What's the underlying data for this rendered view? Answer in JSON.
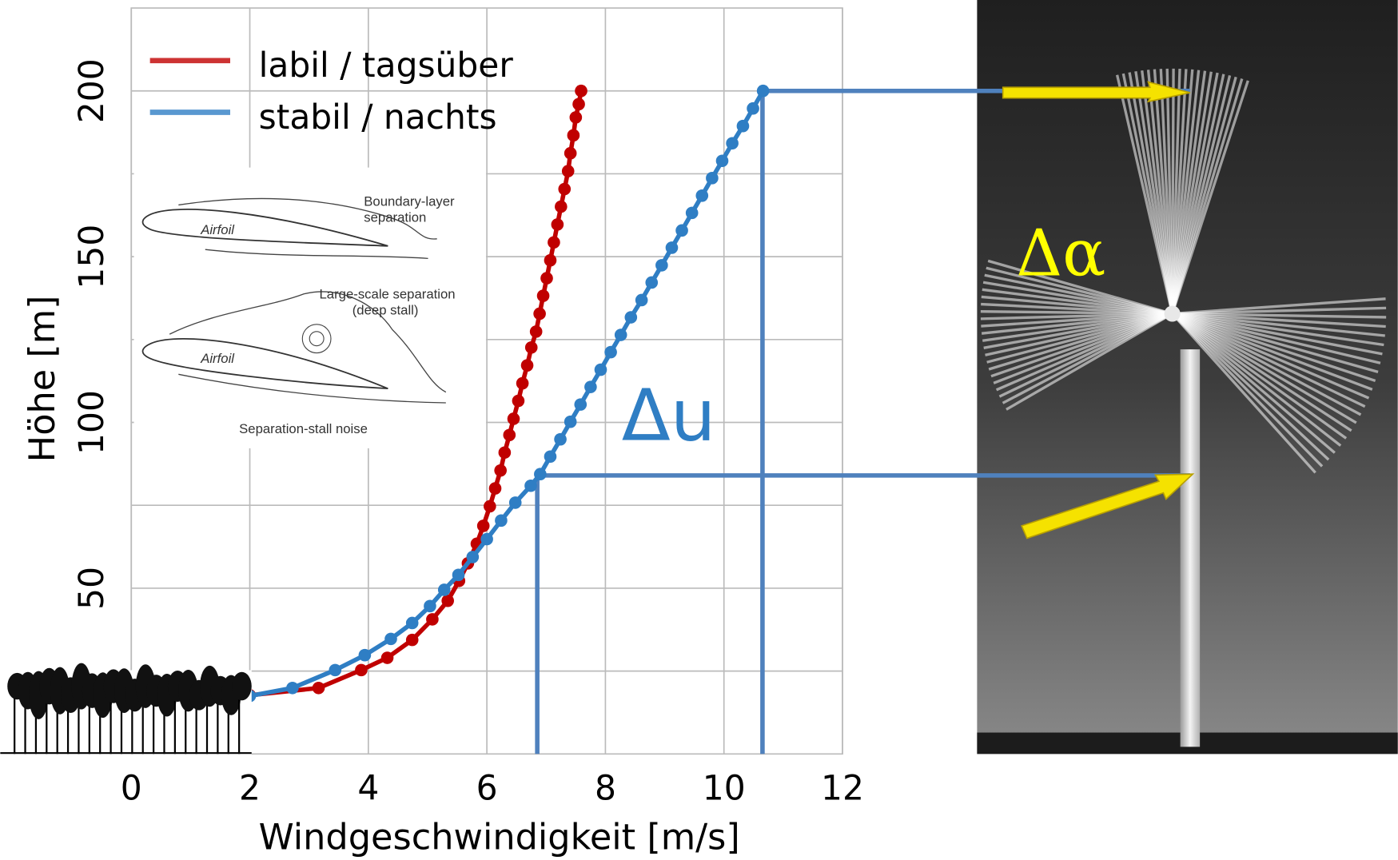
{
  "chart_data": {
    "type": "line",
    "x_label": "Windgeschwindigkeit [m/s]",
    "y_label": "Höhe [m]",
    "xlim": [
      0,
      12
    ],
    "xticks": [
      0,
      2,
      4,
      6,
      8,
      10,
      12
    ],
    "ylim": [
      0,
      225
    ],
    "yticks": [
      50,
      100,
      150,
      200
    ],
    "y_minor_grid": [
      25,
      75,
      125,
      175
    ],
    "grid": true,
    "legend": "upper left",
    "series": [
      {
        "name": "labil / tagsüber",
        "color": "#c00000",
        "x": [
          2.0,
          3.16,
          3.88,
          4.32,
          4.74,
          5.08,
          5.34,
          5.53,
          5.68,
          5.83,
          5.94,
          6.05,
          6.14,
          6.23,
          6.3,
          6.38,
          6.45,
          6.53,
          6.6,
          6.68,
          6.75,
          6.83,
          6.89,
          6.95,
          7.01,
          7.07,
          7.13,
          7.19,
          7.25,
          7.31,
          7.37,
          7.41,
          7.46,
          7.5,
          7.55,
          7.59
        ],
        "values": [
          17.7,
          19.9,
          25.3,
          29.0,
          34.4,
          40.6,
          46.2,
          52.2,
          57.5,
          63.4,
          68.8,
          74.7,
          80.1,
          85.5,
          90.9,
          96.2,
          101.1,
          106.5,
          111.8,
          117.2,
          122.6,
          127.4,
          132.8,
          138.2,
          143.5,
          148.9,
          154.3,
          159.7,
          165.1,
          170.4,
          175.8,
          181.2,
          186.6,
          192.0,
          196.0,
          200.0
        ]
      },
      {
        "name": "stabil / nachts",
        "color": "#2f7ec4",
        "x": [
          2.0,
          2.72,
          3.44,
          3.94,
          4.38,
          4.74,
          5.04,
          5.28,
          5.52,
          5.76,
          6.0,
          6.24,
          6.48,
          6.74,
          6.9,
          7.07,
          7.24,
          7.41,
          7.58,
          7.75,
          7.92,
          8.09,
          8.26,
          8.43,
          8.61,
          8.78,
          8.95,
          9.12,
          9.29,
          9.46,
          9.63,
          9.8,
          9.97,
          10.14,
          10.32,
          10.49,
          10.66
        ],
        "values": [
          17.5,
          19.9,
          25.3,
          29.8,
          34.7,
          39.5,
          44.6,
          49.5,
          54.0,
          59.4,
          64.8,
          70.4,
          75.8,
          80.9,
          84.4,
          89.7,
          94.9,
          100.2,
          105.4,
          110.7,
          115.9,
          121.2,
          126.4,
          131.7,
          136.9,
          142.2,
          147.4,
          152.7,
          157.9,
          163.2,
          168.4,
          173.7,
          178.9,
          184.2,
          189.4,
          194.7,
          200.0
        ]
      }
    ],
    "guides": [
      {
        "x": 6.85,
        "y": 84
      },
      {
        "x": 10.65,
        "y": 200
      }
    ],
    "annotations": [
      {
        "text": "Δu",
        "color": "#2f7ec4"
      },
      {
        "text": "Δα",
        "color": "#ffff00"
      }
    ],
    "inset": {
      "labels": [
        "Boundary-layer",
        "separation",
        "Airfoil",
        "Large-scale separation",
        "(deep stall)",
        "Airfoil",
        "Separation-stall noise"
      ]
    }
  }
}
